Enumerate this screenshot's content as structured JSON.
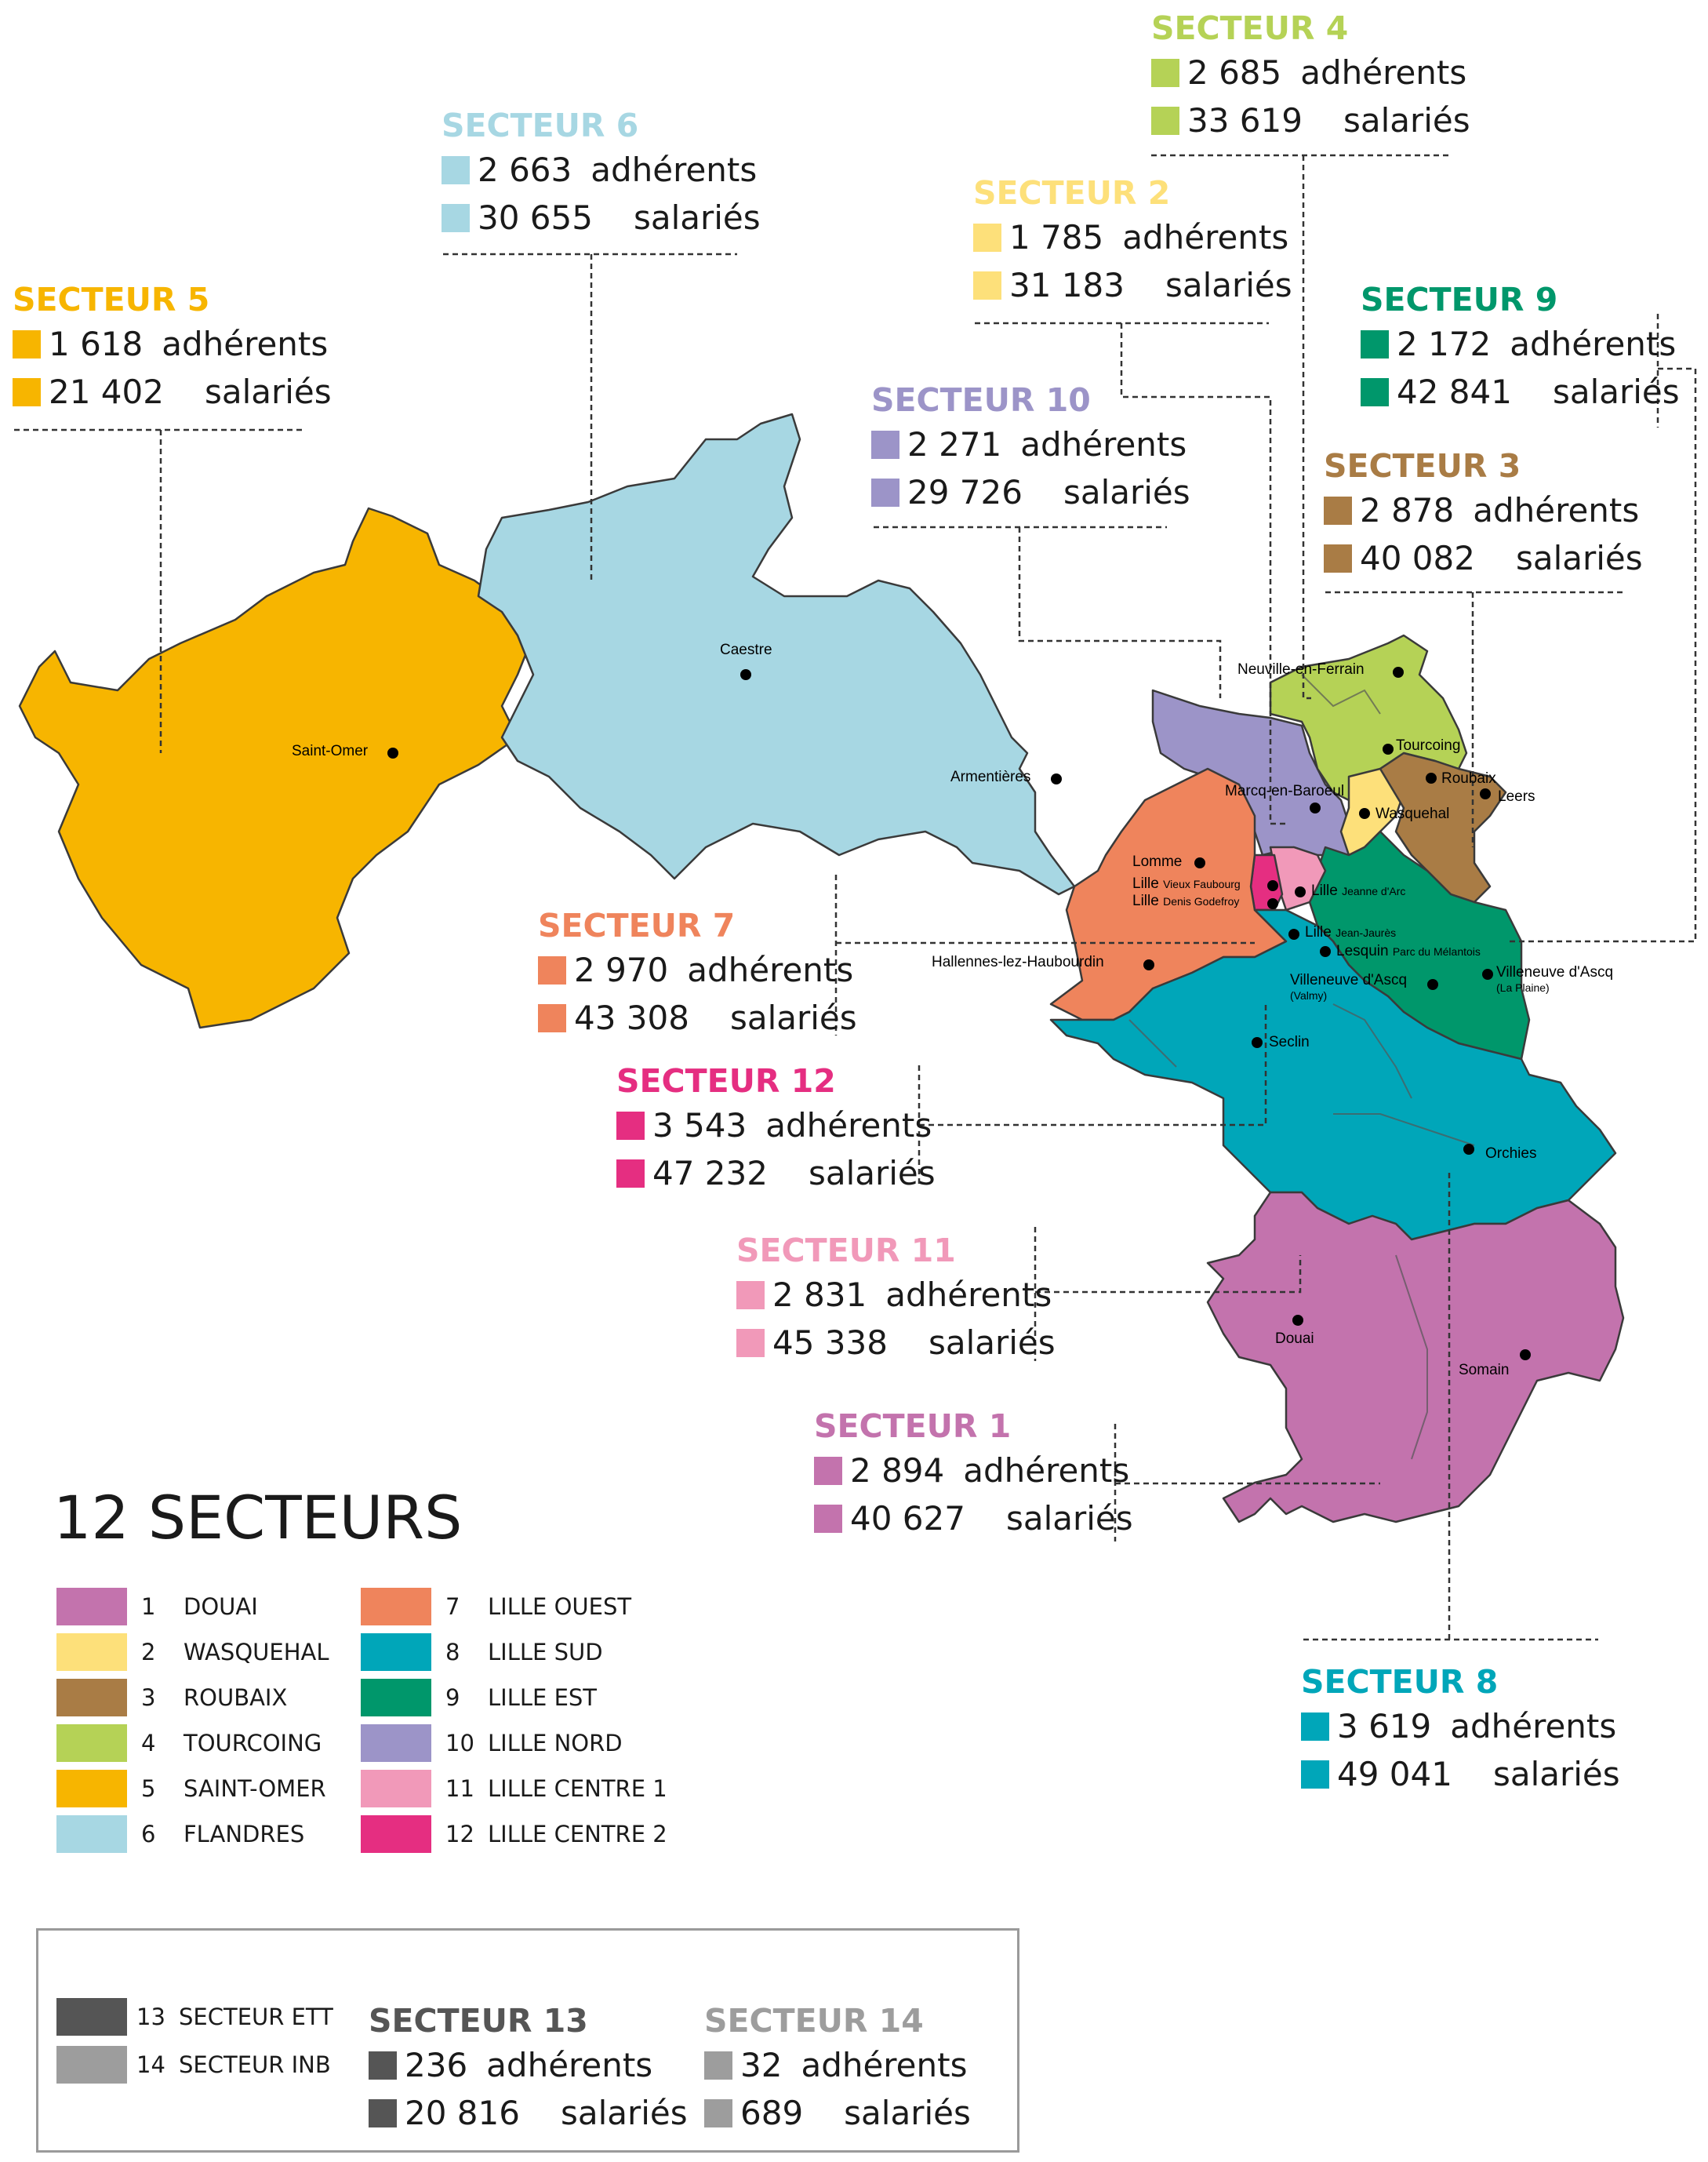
{
  "colors": {
    "s1": "#c373ad",
    "s2": "#fde07a",
    "s3": "#a97c45",
    "s4": "#b5d256",
    "s5": "#f7b500",
    "s6": "#a7d7e3",
    "s7": "#ef845c",
    "s8": "#00a6b9",
    "s9": "#00976b",
    "s10": "#9c94c8",
    "s11": "#f199b9",
    "s12": "#e52e81",
    "s13": "#555555",
    "s14": "#9d9d9d"
  },
  "sectors": {
    "s1": {
      "title": "SECTEUR 1",
      "adherents": "2 894",
      "salaries": "40 627"
    },
    "s2": {
      "title": "SECTEUR 2",
      "adherents": "1 785",
      "salaries": "31 183"
    },
    "s3": {
      "title": "SECTEUR 3",
      "adherents": "2 878",
      "salaries": "40 082"
    },
    "s4": {
      "title": "SECTEUR 4",
      "adherents": "2 685",
      "salaries": "33 619"
    },
    "s5": {
      "title": "SECTEUR 5",
      "adherents": "1 618",
      "salaries": "21 402"
    },
    "s6": {
      "title": "SECTEUR 6",
      "adherents": "2 663",
      "salaries": "30 655"
    },
    "s7": {
      "title": "SECTEUR 7",
      "adherents": "2 970",
      "salaries": "43 308"
    },
    "s8": {
      "title": "SECTEUR 8",
      "adherents": "3 619",
      "salaries": "49 041"
    },
    "s9": {
      "title": "SECTEUR 9",
      "adherents": "2 172",
      "salaries": "42 841"
    },
    "s10": {
      "title": "SECTEUR 10",
      "adherents": "2 271",
      "salaries": "29 726"
    },
    "s11": {
      "title": "SECTEUR 11",
      "adherents": "2 831",
      "salaries": "45 338"
    },
    "s12": {
      "title": "SECTEUR 12",
      "adherents": "3 543",
      "salaries": "47 232"
    },
    "s13": {
      "title": "SECTEUR 13",
      "adherents": "236",
      "salaries": "20 816"
    },
    "s14": {
      "title": "SECTEUR 14",
      "adherents": "32",
      "salaries": "689"
    }
  },
  "labels": {
    "adherents": "adhérents",
    "salaries": "salariés"
  },
  "cities": {
    "saint_omer": "Saint-Omer",
    "caestre": "Caestre",
    "armentieres": "Armentières",
    "neuville": "Neuville-en-Ferrain",
    "tourcoing": "Tourcoing",
    "roubaix": "Roubaix",
    "leers": "Leers",
    "marcq": "Marcq-en-Baroeul",
    "wasquehal": "Wasquehal",
    "lomme": "Lomme",
    "lille_vf": "Lille",
    "lille_vf_sub": "Vieux Faubourg",
    "lille_dg": "Lille",
    "lille_dg_sub": "Denis Godefroy",
    "lille_ja": "Lille",
    "lille_ja_sub": "Jeanne d'Arc",
    "lille_jj": "Lille",
    "lille_jj_sub": "Jean-Jaurès",
    "lesquin": "Lesquin",
    "lesquin_sub": "Parc du Mélantois",
    "hallennes": "Hallennes-lez-Haubourdin",
    "va_valmy": "Villeneuve d'Ascq",
    "va_valmy_sub": "(Valmy)",
    "va_plaine": "Villeneuve d'Ascq",
    "va_plaine_sub": "(La Plaine)",
    "seclin": "Seclin",
    "orchies": "Orchies",
    "douai": "Douai",
    "somain": "Somain"
  },
  "legend": {
    "title": "12 SECTEURS",
    "items": [
      {
        "num": "1",
        "name": "DOUAI"
      },
      {
        "num": "2",
        "name": "WASQUEHAL"
      },
      {
        "num": "3",
        "name": "ROUBAIX"
      },
      {
        "num": "4",
        "name": "TOURCOING"
      },
      {
        "num": "5",
        "name": "SAINT-OMER"
      },
      {
        "num": "6",
        "name": "FLANDRES"
      },
      {
        "num": "7",
        "name": "LILLE OUEST"
      },
      {
        "num": "8",
        "name": "LILLE SUD"
      },
      {
        "num": "9",
        "name": "LILLE EST"
      },
      {
        "num": "10",
        "name": "LILLE NORD"
      },
      {
        "num": "11",
        "name": "LILLE CENTRE 1"
      },
      {
        "num": "12",
        "name": "LILLE CENTRE 2"
      }
    ],
    "extra": [
      {
        "num": "13",
        "name": "SECTEUR ETT"
      },
      {
        "num": "14",
        "name": "SECTEUR INB"
      }
    ]
  }
}
